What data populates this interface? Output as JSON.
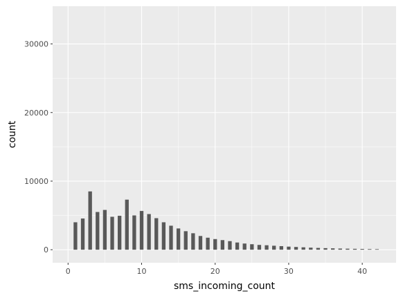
{
  "chart_data": {
    "type": "bar",
    "title": "",
    "xlabel": "sms_incoming_count",
    "ylabel": "count",
    "xlim": [
      -2.1,
      44.6
    ],
    "ylim": [
      -1900,
      35500
    ],
    "x_ticks": [
      0,
      10,
      20,
      30,
      40
    ],
    "x_tick_labels": [
      "0",
      "10",
      "20",
      "30",
      "40"
    ],
    "y_ticks": [
      0,
      10000,
      20000,
      30000
    ],
    "y_tick_labels": [
      "0",
      "10000",
      "20000",
      "30000"
    ],
    "grid": true,
    "legend": "none",
    "x": [
      1,
      2,
      3,
      4,
      5,
      6,
      7,
      8,
      9,
      10,
      11,
      12,
      13,
      14,
      15,
      16,
      17,
      18,
      19,
      20,
      21,
      22,
      23,
      24,
      25,
      26,
      27,
      28,
      29,
      30,
      31,
      32,
      33,
      34,
      35,
      36,
      37,
      38,
      39,
      40,
      41,
      42
    ],
    "values": [
      4000,
      4550,
      8500,
      5500,
      5800,
      4800,
      4950,
      7300,
      5000,
      5650,
      5200,
      4600,
      4000,
      3500,
      3100,
      2700,
      2400,
      2000,
      1750,
      1550,
      1400,
      1250,
      1050,
      900,
      800,
      700,
      650,
      580,
      520,
      450,
      400,
      350,
      300,
      260,
      230,
      200,
      170,
      150,
      130,
      110,
      90,
      80
    ],
    "colors": {
      "panel": "#ebebeb",
      "grid_major": "#ffffff",
      "bar": "#595959",
      "tick_label": "#4d4d4d",
      "axis_title": "#000000",
      "tick_mark": "#333333"
    }
  }
}
